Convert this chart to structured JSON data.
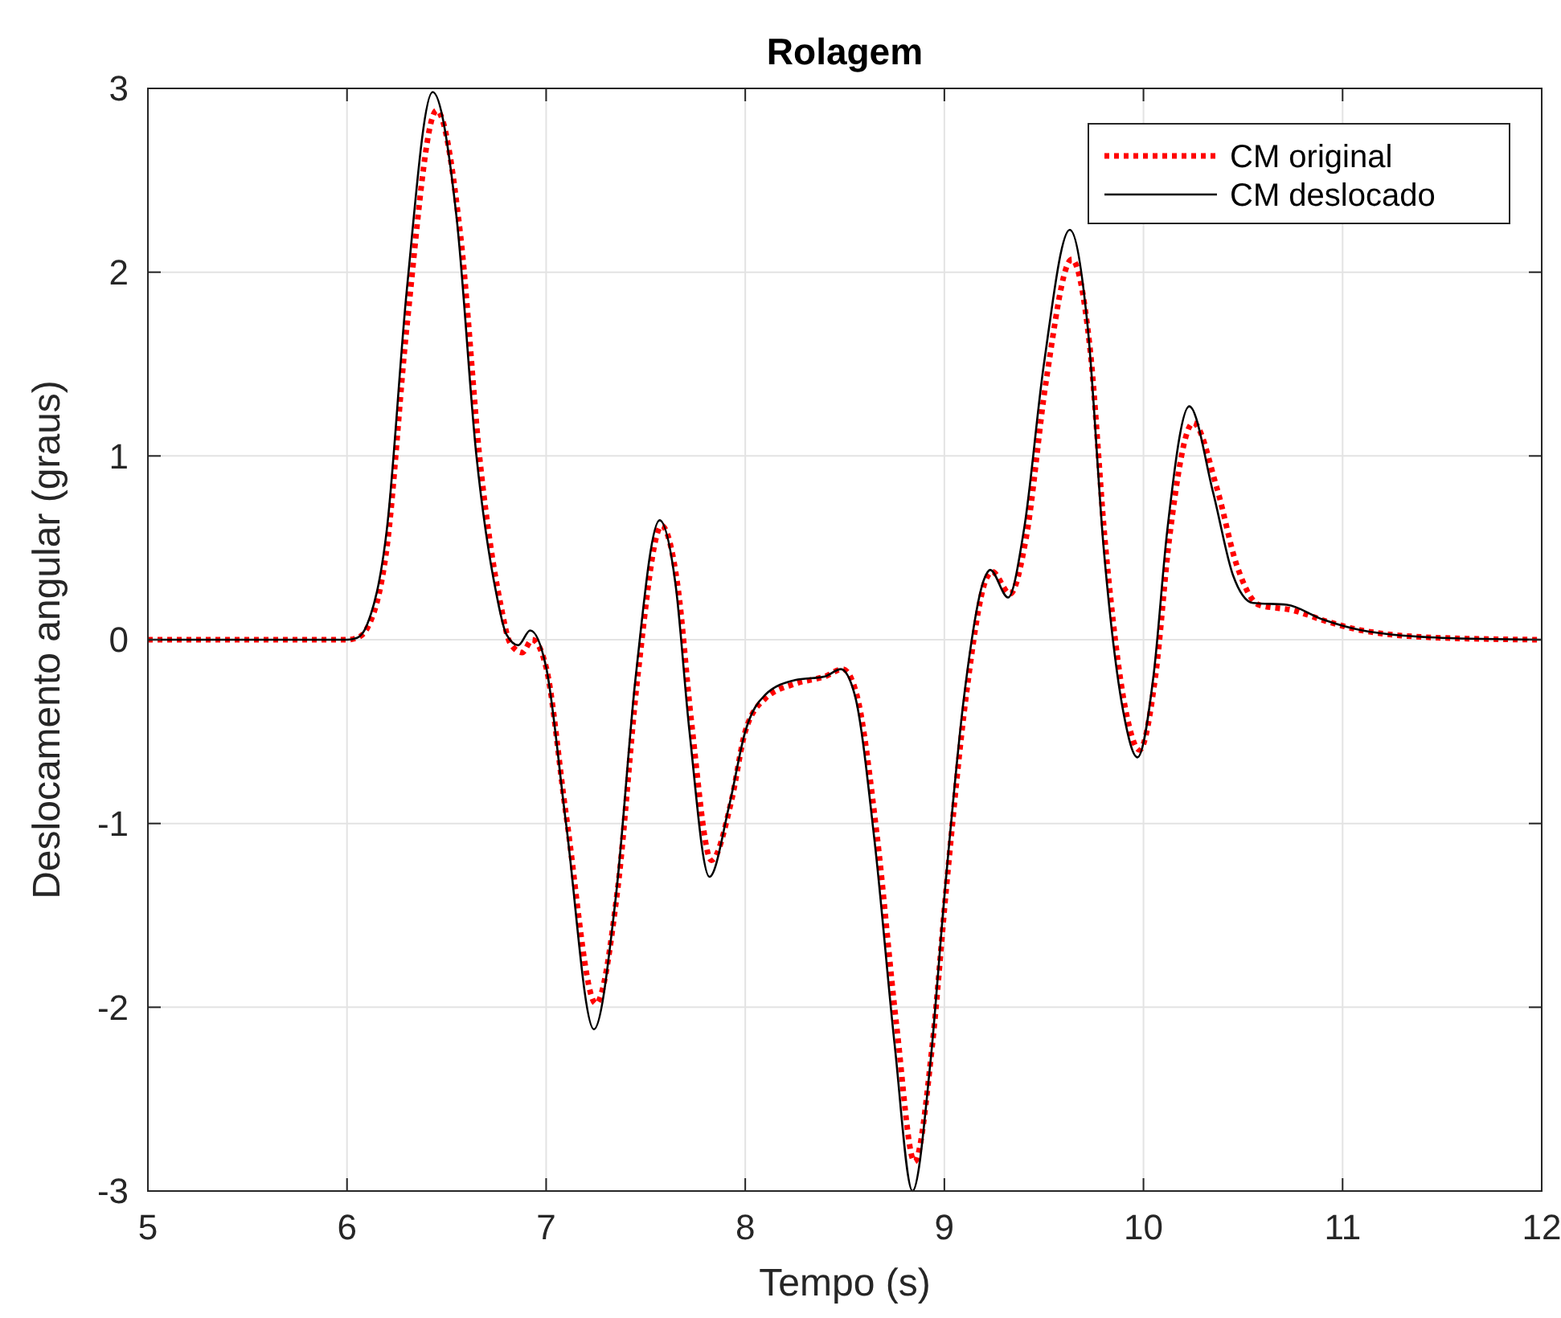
{
  "chart_data": {
    "type": "line",
    "title": "Rolagem",
    "xlabel": "Tempo (s)",
    "ylabel": "Deslocamento angular (graus)",
    "xlim": [
      5,
      12
    ],
    "xticks": [
      5,
      6,
      7,
      8,
      9,
      10,
      11,
      12
    ],
    "ylim": [
      -3,
      3
    ],
    "yticks": [
      -3,
      -2,
      -1,
      0,
      1,
      2,
      3
    ],
    "grid": true,
    "legend": "top right",
    "series": [
      {
        "name": "CM original",
        "color": "#ff0000",
        "line_style": "dotted",
        "x": [
          5,
          6,
          6.05,
          6.1,
          6.2,
          6.3,
          6.45,
          6.57,
          6.67,
          6.77,
          6.82,
          6.88,
          6.93,
          7.0,
          7.1,
          7.25,
          7.36,
          7.46,
          7.58,
          7.66,
          7.73,
          7.83,
          7.93,
          8.0,
          8.1,
          8.25,
          8.4,
          8.49,
          8.56,
          8.66,
          8.76,
          8.85,
          8.94,
          9.01,
          9.11,
          9.21,
          9.24,
          9.33,
          9.41,
          9.51,
          9.64,
          9.73,
          9.81,
          9.91,
          9.98,
          10.06,
          10.13,
          10.25,
          10.37,
          10.47,
          10.58,
          10.75,
          10.92,
          11.1,
          11.5,
          12
        ],
        "values": [
          0,
          0,
          0.01,
          0.06,
          0.5,
          1.7,
          2.88,
          2.2,
          0.95,
          0.2,
          -0.02,
          -0.07,
          0.0,
          -0.15,
          -0.95,
          -1.98,
          -1.35,
          -0.2,
          0.62,
          0.3,
          -0.45,
          -1.2,
          -0.88,
          -0.5,
          -0.32,
          -0.24,
          -0.2,
          -0.16,
          -0.3,
          -1.05,
          -2.1,
          -2.84,
          -2.2,
          -1.35,
          -0.3,
          0.33,
          0.37,
          0.25,
          0.55,
          1.4,
          2.07,
          1.6,
          0.5,
          -0.38,
          -0.6,
          -0.2,
          0.55,
          1.18,
          0.82,
          0.4,
          0.19,
          0.16,
          0.1,
          0.05,
          0.01,
          0
        ]
      },
      {
        "name": "CM deslocado",
        "color": "#000000",
        "line_style": "solid",
        "x": [
          5,
          6,
          6.05,
          6.1,
          6.2,
          6.3,
          6.43,
          6.55,
          6.65,
          6.75,
          6.8,
          6.86,
          6.92,
          7.0,
          7.1,
          7.24,
          7.35,
          7.45,
          7.57,
          7.65,
          7.72,
          7.82,
          7.92,
          8.0,
          8.1,
          8.25,
          8.4,
          8.48,
          8.55,
          8.65,
          8.75,
          8.84,
          8.93,
          9.0,
          9.1,
          9.2,
          9.23,
          9.32,
          9.4,
          9.5,
          9.63,
          9.72,
          9.8,
          9.9,
          9.97,
          10.05,
          10.12,
          10.23,
          10.35,
          10.45,
          10.55,
          10.72,
          10.9,
          11.1,
          11.5,
          12
        ],
        "values": [
          0,
          0,
          0.01,
          0.08,
          0.6,
          1.9,
          2.98,
          2.3,
          1.0,
          0.25,
          0.03,
          -0.03,
          0.05,
          -0.15,
          -1.0,
          -2.12,
          -1.4,
          -0.2,
          0.65,
          0.3,
          -0.5,
          -1.29,
          -0.9,
          -0.5,
          -0.3,
          -0.22,
          -0.2,
          -0.16,
          -0.3,
          -1.1,
          -2.2,
          -3.0,
          -2.3,
          -1.4,
          -0.3,
          0.33,
          0.38,
          0.23,
          0.6,
          1.5,
          2.23,
          1.7,
          0.5,
          -0.4,
          -0.64,
          -0.2,
          0.6,
          1.27,
          0.8,
          0.35,
          0.2,
          0.19,
          0.11,
          0.05,
          0.01,
          0
        ]
      }
    ]
  }
}
